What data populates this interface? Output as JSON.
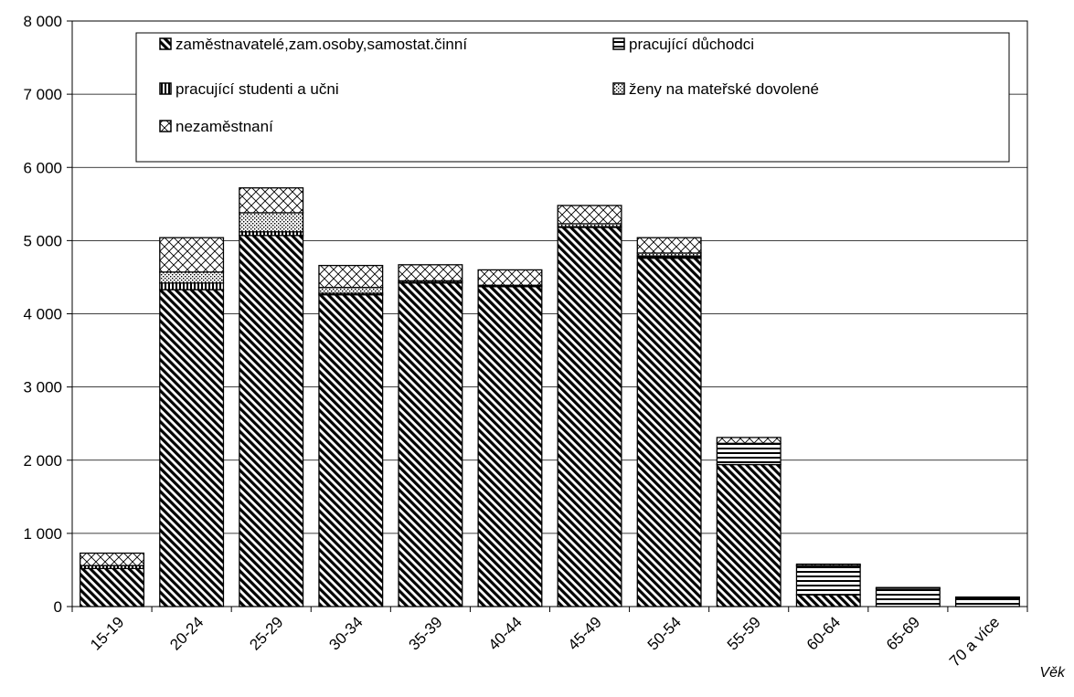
{
  "chart_data": {
    "type": "bar",
    "stacked": true,
    "categories": [
      "15-19",
      "20-24",
      "25-29",
      "30-34",
      "35-39",
      "40-44",
      "45-49",
      "50-54",
      "55-59",
      "60-64",
      "65-69",
      "70 a více"
    ],
    "series": [
      {
        "name": "zaměstnavatelé,zam.osoby,samostat.činní",
        "pattern": "diag-dense",
        "values": [
          520,
          4330,
          5070,
          4260,
          4420,
          4370,
          5180,
          4760,
          1940,
          160,
          0,
          0
        ]
      },
      {
        "name": "pracující důchodci",
        "pattern": "horizontal",
        "values": [
          0,
          0,
          0,
          0,
          0,
          0,
          0,
          30,
          290,
          400,
          250,
          120
        ]
      },
      {
        "name": "pracující studenti a učni",
        "pattern": "vertical",
        "values": [
          40,
          90,
          50,
          20,
          10,
          10,
          10,
          0,
          0,
          0,
          0,
          0
        ]
      },
      {
        "name": "ženy na mateřské dovolené",
        "pattern": "dots",
        "values": [
          0,
          150,
          260,
          80,
          20,
          10,
          40,
          40,
          0,
          0,
          0,
          0
        ]
      },
      {
        "name": "nezaměstnaní",
        "pattern": "crosshatch",
        "values": [
          170,
          470,
          340,
          300,
          220,
          210,
          250,
          210,
          80,
          20,
          10,
          10
        ]
      }
    ],
    "xlabel": "Věk",
    "ylabel": "",
    "ylim": [
      0,
      8000
    ],
    "yticks": [
      0,
      1000,
      2000,
      3000,
      4000,
      5000,
      6000,
      7000,
      8000
    ],
    "ytick_labels": [
      "0",
      "1 000",
      "2 000",
      "3 000",
      "4 000",
      "5 000",
      "6 000",
      "7 000",
      "8 000"
    ],
    "grid": true,
    "legend_position": "top"
  }
}
